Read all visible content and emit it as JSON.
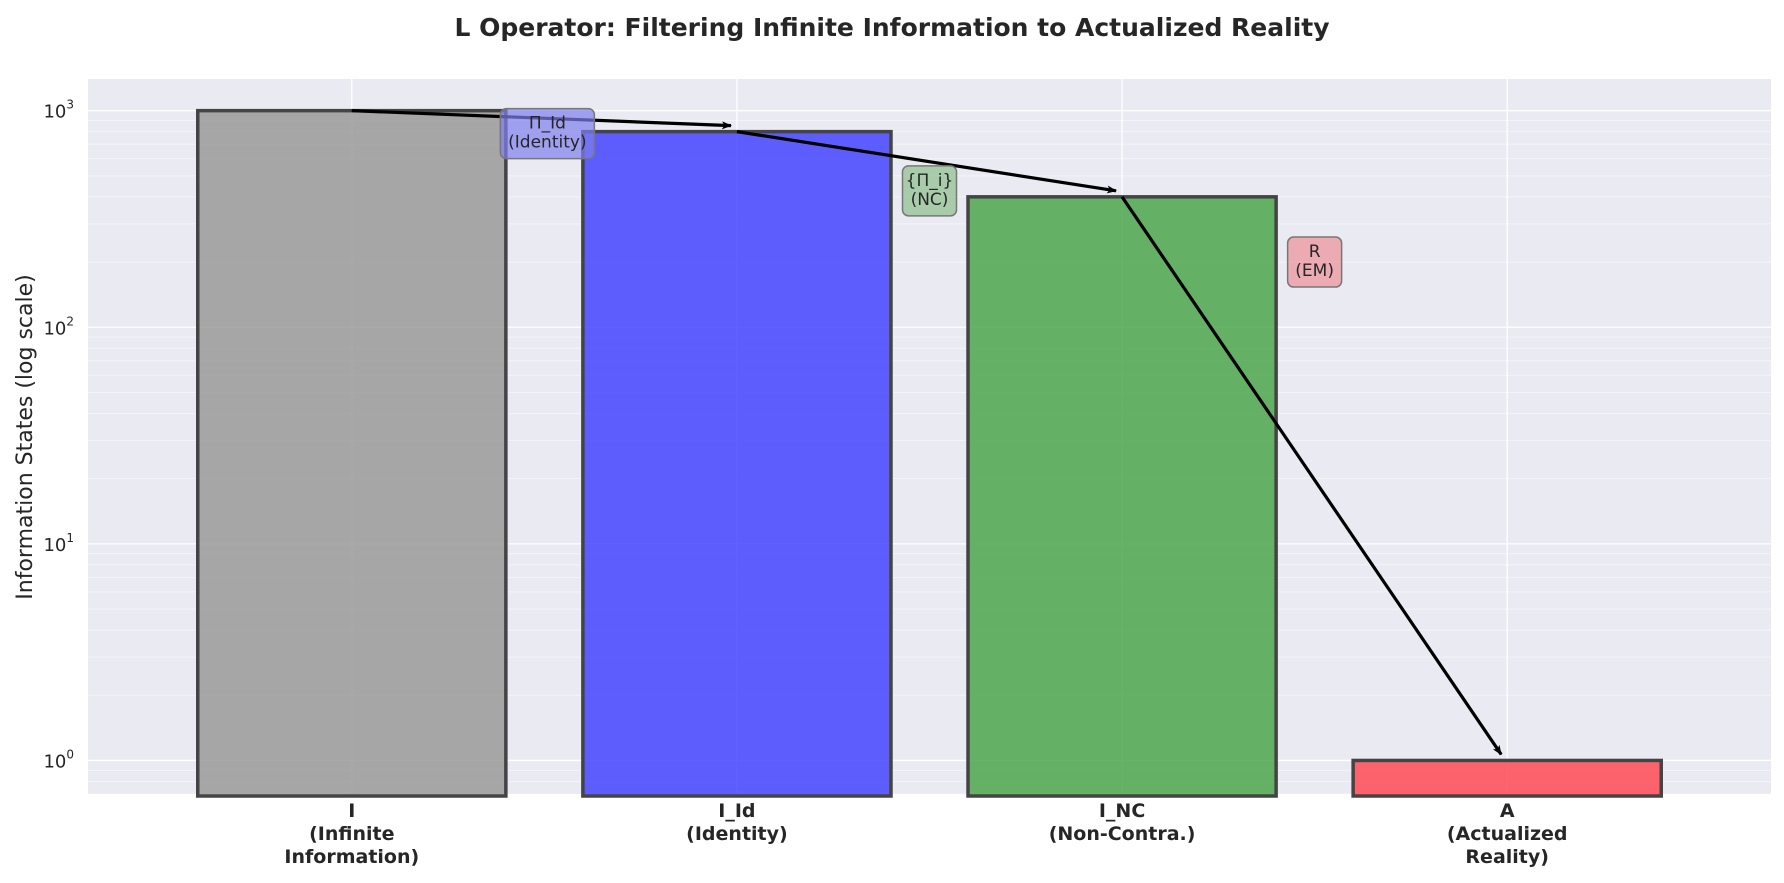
{
  "chart_data": {
    "type": "bar",
    "title": "L Operator: Filtering Infinite Information to Actualized Reality",
    "ylabel": "Information States (log scale)",
    "xlabel": "",
    "yscale": "log",
    "ylim": [
      0.7,
      1400
    ],
    "grid": true,
    "yticks": [
      {
        "base": "10",
        "exp": "0",
        "value": 1
      },
      {
        "base": "10",
        "exp": "1",
        "value": 10
      },
      {
        "base": "10",
        "exp": "2",
        "value": 100
      },
      {
        "base": "10",
        "exp": "3",
        "value": 1000
      }
    ],
    "categories": [
      {
        "lines": [
          "I",
          "(Infinite",
          "Information)"
        ],
        "value": 1000,
        "color": "#9a9a9a"
      },
      {
        "lines": [
          "I_Id",
          "(Identity)"
        ],
        "value": 800,
        "color": "#4444ff"
      },
      {
        "lines": [
          "I_NC",
          "(Non-Contra.)"
        ],
        "value": 400,
        "color": "#4ca64c"
      },
      {
        "lines": [
          "A",
          "(Actualized",
          "Reality)"
        ],
        "value": 1,
        "color": "#ff4a55"
      }
    ],
    "transitions": [
      {
        "from": 0,
        "to": 1,
        "lines": [
          "Π_Id",
          "(Identity)"
        ],
        "color": "#7f7fee"
      },
      {
        "from": 1,
        "to": 2,
        "lines": [
          "{Π_i}",
          "(NC)"
        ],
        "color": "#8cbf8c"
      },
      {
        "from": 2,
        "to": 3,
        "lines": [
          "R",
          "(EM)"
        ],
        "color": "#ec9097"
      }
    ]
  }
}
